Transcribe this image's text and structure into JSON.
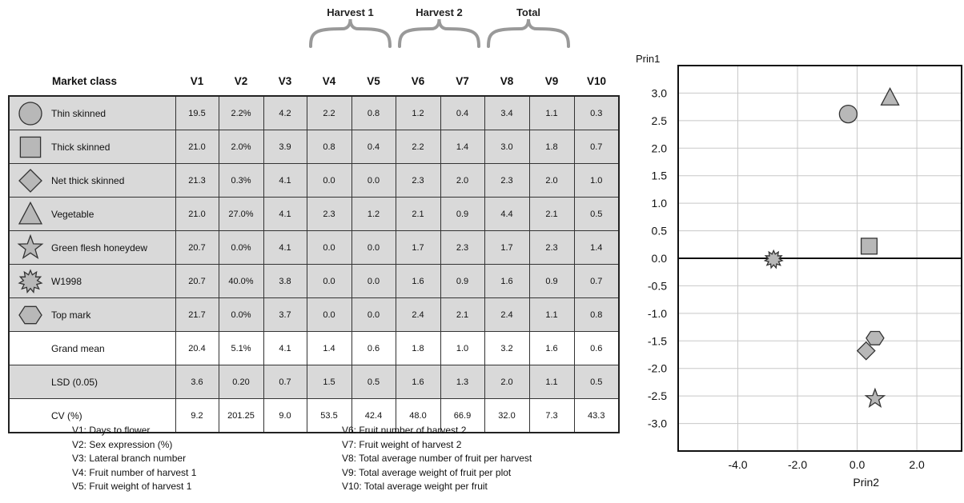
{
  "table": {
    "group_headers": [
      {
        "label": "Harvest 1",
        "from": "V4",
        "to": "V5"
      },
      {
        "label": "Harvest 2",
        "from": "V6",
        "to": "V7"
      },
      {
        "label": "Total",
        "from": "V8",
        "to": "V9"
      }
    ],
    "columns": [
      "Market class",
      "V1",
      "V2",
      "V3",
      "V4",
      "V5",
      "V6",
      "V7",
      "V8",
      "V9",
      "V10"
    ],
    "rows": [
      {
        "class": "Thin skinned",
        "icon": "circle-icon",
        "values": [
          "19.5",
          "2.2%",
          "4.2",
          "2.2",
          "0.8",
          "1.2",
          "0.4",
          "3.4",
          "1.1",
          "0.3"
        ]
      },
      {
        "class": "Thick skinned",
        "icon": "square-icon",
        "values": [
          "21.0",
          "2.0%",
          "3.9",
          "0.8",
          "0.4",
          "2.2",
          "1.4",
          "3.0",
          "1.8",
          "0.7"
        ]
      },
      {
        "class": "Net thick skinned",
        "icon": "diamond-icon",
        "values": [
          "21.3",
          "0.3%",
          "4.1",
          "0.0",
          "0.0",
          "2.3",
          "2.0",
          "2.3",
          "2.0",
          "1.0"
        ]
      },
      {
        "class": "Vegetable",
        "icon": "triangle-icon",
        "values": [
          "21.0",
          "27.0%",
          "4.1",
          "2.3",
          "1.2",
          "2.1",
          "0.9",
          "4.4",
          "2.1",
          "0.5"
        ]
      },
      {
        "class": "Green flesh honeydew",
        "icon": "star-icon",
        "values": [
          "20.7",
          "0.0%",
          "4.1",
          "0.0",
          "0.0",
          "1.7",
          "2.3",
          "1.7",
          "2.3",
          "1.4"
        ]
      },
      {
        "class": "W1998",
        "icon": "burst-icon",
        "values": [
          "20.7",
          "40.0%",
          "3.8",
          "0.0",
          "0.0",
          "1.6",
          "0.9",
          "1.6",
          "0.9",
          "0.7"
        ]
      },
      {
        "class": "Top mark",
        "icon": "hexagon-icon",
        "values": [
          "21.7",
          "0.0%",
          "3.7",
          "0.0",
          "0.0",
          "2.4",
          "2.1",
          "2.4",
          "1.1",
          "0.8"
        ]
      },
      {
        "class": "Grand mean",
        "icon": "",
        "values": [
          "20.4",
          "5.1%",
          "4.1",
          "1.4",
          "0.6",
          "1.8",
          "1.0",
          "3.2",
          "1.6",
          "0.6"
        ]
      },
      {
        "class": "LSD (0.05)",
        "icon": "",
        "values": [
          "3.6",
          "0.20",
          "0.7",
          "1.5",
          "0.5",
          "1.6",
          "1.3",
          "2.0",
          "1.1",
          "0.5"
        ]
      },
      {
        "class": "CV (%)",
        "icon": "",
        "values": [
          "9.2",
          "201.25",
          "9.0",
          "53.5",
          "42.4",
          "48.0",
          "66.9",
          "32.0",
          "7.3",
          "43.3"
        ]
      }
    ],
    "shaded_rows": [
      0,
      1,
      2,
      3,
      4,
      5,
      6,
      8
    ],
    "colors": {
      "shade": "#d9d9d9",
      "marker_fill": "#b8b8b8",
      "marker_stroke": "#333333"
    }
  },
  "legend": {
    "left": [
      "V1: Days to flower",
      "V2: Sex expression (%)",
      "V3: Lateral branch number",
      "V4: Fruit number of harvest 1",
      "V5: Fruit weight of harvest 1"
    ],
    "right": [
      "V6: Fruit number of harvest 2",
      "V7: Fruit weight of harvest 2",
      "V8: Total average number of fruit per harvest",
      "V9: Total average weight of fruit per plot",
      "V10: Total average weight per fruit"
    ]
  },
  "chart_data": {
    "type": "scatter",
    "xlabel": "Prin2",
    "ylabel": "Prin1",
    "xlim": [
      -6.0,
      3.5
    ],
    "ylim": [
      -3.5,
      3.5
    ],
    "xticks": [
      -4.0,
      -2.0,
      0.0,
      2.0
    ],
    "yticks": [
      3.0,
      2.5,
      2.0,
      1.5,
      1.0,
      0.5,
      0.0,
      -0.5,
      -1.0,
      -1.5,
      -2.0,
      -2.5,
      -3.0
    ],
    "xtick_labels": [
      "-4.0",
      "-2.0",
      "0.0",
      "2.0"
    ],
    "ytick_labels": [
      "3.0",
      "2.5",
      "2.0",
      "1.5",
      "1.0",
      "0.5",
      "0.0",
      "-0.5",
      "-1.0",
      "-1.5",
      "-2.0",
      "-2.5",
      "-3.0"
    ],
    "grid": true,
    "zero_line": true,
    "points": [
      {
        "marker": "circle",
        "x": -0.3,
        "y": 2.62
      },
      {
        "marker": "triangle",
        "x": 1.1,
        "y": 2.92
      },
      {
        "marker": "square",
        "x": 0.4,
        "y": 0.22
      },
      {
        "marker": "burst",
        "x": -2.8,
        "y": -0.02
      },
      {
        "marker": "hexagon",
        "x": 0.6,
        "y": -1.45
      },
      {
        "marker": "diamond",
        "x": 0.3,
        "y": -1.68
      },
      {
        "marker": "star",
        "x": 0.6,
        "y": -2.55
      }
    ]
  }
}
